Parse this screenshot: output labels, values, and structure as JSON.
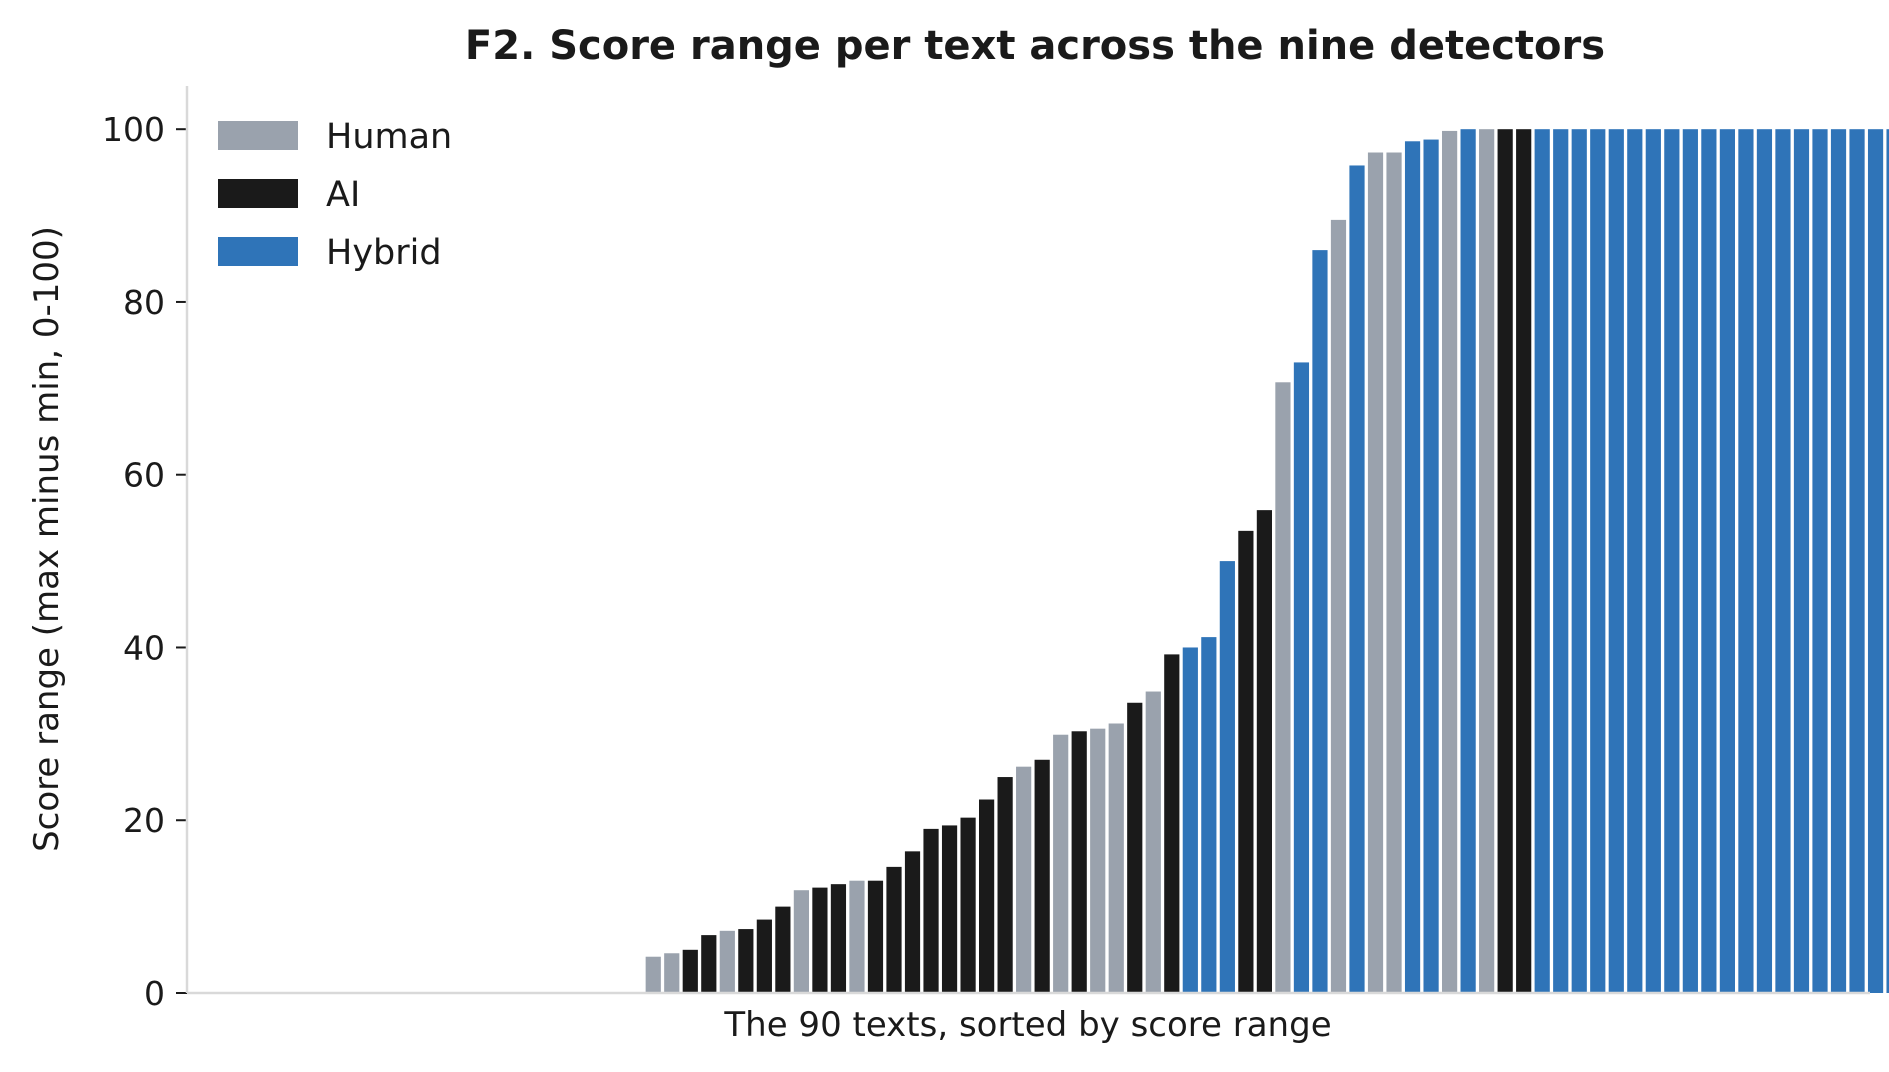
{
  "chart_data": {
    "type": "bar",
    "title": "F2. Score range per text across the nine detectors",
    "xlabel": "The 90 texts, sorted by score range",
    "ylabel": "Score range (max minus min, 0-100)",
    "ylim": [
      0,
      105
    ],
    "yticks": [
      0,
      20,
      40,
      60,
      80,
      100
    ],
    "grid": false,
    "legend_position": "top-left",
    "n_texts": 90,
    "series": [
      {
        "name": "Human",
        "color": "#9aa2ad"
      },
      {
        "name": "AI",
        "color": "#1a1a1a"
      },
      {
        "name": "Hybrid",
        "color": "#2f74b8"
      }
    ],
    "values": [
      0,
      0,
      0,
      0,
      0,
      0,
      0,
      0,
      0,
      0,
      0,
      0,
      0,
      0,
      0,
      0,
      0,
      0,
      0,
      0,
      0,
      0,
      4.2,
      4.6,
      5.0,
      6.7,
      7.2,
      7.4,
      8.5,
      10.0,
      11.9,
      12.2,
      12.6,
      13.0,
      13.0,
      14.6,
      16.4,
      19.0,
      19.4,
      20.3,
      22.4,
      25.0,
      26.2,
      27.0,
      29.9,
      30.3,
      30.6,
      31.2,
      33.6,
      34.9,
      39.2,
      40.0,
      41.2,
      50.0,
      53.5,
      55.9,
      70.7,
      73.0,
      86.0,
      89.5,
      95.8,
      97.3,
      97.3,
      98.6,
      98.8,
      99.8,
      100,
      100,
      100,
      100,
      100,
      100,
      100,
      100,
      100,
      100,
      100,
      100,
      100,
      100,
      100,
      100,
      100,
      100,
      100,
      100,
      100,
      100,
      100,
      100
    ],
    "groups": [
      "Human",
      "Human",
      "Human",
      "Human",
      "Human",
      "Human",
      "Human",
      "Human",
      "Human",
      "Human",
      "Human",
      "Human",
      "Human",
      "Human",
      "Human",
      "Human",
      "Human",
      "Human",
      "Human",
      "Human",
      "Human",
      "Human",
      "Human",
      "Human",
      "AI",
      "AI",
      "Human",
      "AI",
      "AI",
      "AI",
      "Human",
      "AI",
      "AI",
      "Human",
      "AI",
      "AI",
      "AI",
      "AI",
      "AI",
      "AI",
      "AI",
      "AI",
      "Human",
      "AI",
      "Human",
      "AI",
      "Human",
      "Human",
      "AI",
      "Human",
      "AI",
      "Hybrid",
      "Hybrid",
      "Hybrid",
      "AI",
      "AI",
      "Human",
      "Hybrid",
      "Hybrid",
      "Human",
      "Hybrid",
      "Human",
      "Human",
      "Hybrid",
      "Hybrid",
      "Human",
      "Hybrid",
      "Human",
      "AI",
      "AI",
      "Hybrid",
      "Hybrid",
      "Hybrid",
      "Hybrid",
      "Hybrid",
      "Hybrid",
      "Hybrid",
      "Hybrid",
      "Hybrid",
      "Hybrid",
      "Hybrid",
      "Hybrid",
      "Hybrid",
      "Hybrid",
      "Hybrid",
      "Hybrid",
      "Hybrid",
      "Hybrid",
      "Hybrid",
      "Hybrid"
    ]
  }
}
